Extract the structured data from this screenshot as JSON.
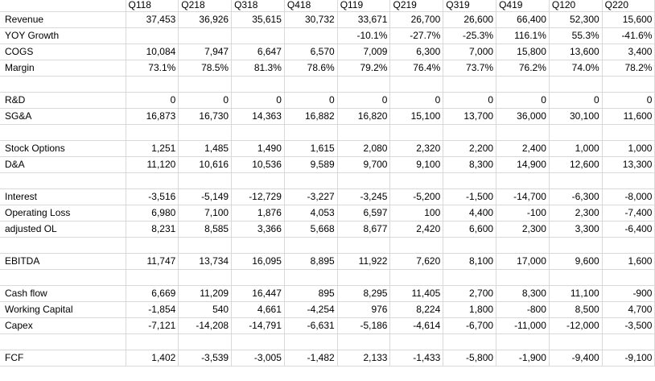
{
  "columns": [
    "",
    "Q118",
    "Q218",
    "Q318",
    "Q418",
    "Q119",
    "Q219",
    "Q319",
    "Q419",
    "Q120",
    "Q220"
  ],
  "rows": [
    {
      "label": "Revenue",
      "values": [
        "37,453",
        "36,926",
        "35,615",
        "30,732",
        "33,671",
        "26,700",
        "26,600",
        "66,400",
        "52,300",
        "15,600"
      ]
    },
    {
      "label": "YOY Growth",
      "values": [
        "",
        "",
        "",
        "",
        "-10.1%",
        "-27.7%",
        "-25.3%",
        "116.1%",
        "55.3%",
        "-41.6%"
      ]
    },
    {
      "label": "COGS",
      "values": [
        "10,084",
        "7,947",
        "6,647",
        "6,570",
        "7,009",
        "6,300",
        "7,000",
        "15,800",
        "13,600",
        "3,400"
      ]
    },
    {
      "label": "Margin",
      "values": [
        "73.1%",
        "78.5%",
        "81.3%",
        "78.6%",
        "79.2%",
        "76.4%",
        "73.7%",
        "76.2%",
        "74.0%",
        "78.2%"
      ]
    },
    {
      "label": "",
      "values": [
        "",
        "",
        "",
        "",
        "",
        "",
        "",
        "",
        "",
        ""
      ]
    },
    {
      "label": "R&D",
      "values": [
        "0",
        "0",
        "0",
        "0",
        "0",
        "0",
        "0",
        "0",
        "0",
        "0"
      ]
    },
    {
      "label": "SG&A",
      "values": [
        "16,873",
        "16,730",
        "14,363",
        "16,882",
        "16,820",
        "15,100",
        "13,700",
        "36,000",
        "30,100",
        "11,600"
      ]
    },
    {
      "label": "",
      "values": [
        "",
        "",
        "",
        "",
        "",
        "",
        "",
        "",
        "",
        ""
      ]
    },
    {
      "label": "Stock Options",
      "values": [
        "1,251",
        "1,485",
        "1,490",
        "1,615",
        "2,080",
        "2,320",
        "2,200",
        "2,400",
        "1,000",
        "1,000"
      ]
    },
    {
      "label": "D&A",
      "values": [
        "11,120",
        "10,616",
        "10,536",
        "9,589",
        "9,700",
        "9,100",
        "8,300",
        "14,900",
        "12,600",
        "13,300"
      ]
    },
    {
      "label": "",
      "values": [
        "",
        "",
        "",
        "",
        "",
        "",
        "",
        "",
        "",
        ""
      ]
    },
    {
      "label": "Interest",
      "values": [
        "-3,516",
        "-5,149",
        "-12,729",
        "-3,227",
        "-3,245",
        "-5,200",
        "-1,500",
        "-14,700",
        "-6,300",
        "-8,000"
      ]
    },
    {
      "label": "Operating Loss",
      "values": [
        "6,980",
        "7,100",
        "1,876",
        "4,053",
        "6,597",
        "100",
        "4,400",
        "-100",
        "2,300",
        "-7,400"
      ]
    },
    {
      "label": "adjusted OL",
      "values": [
        "8,231",
        "8,585",
        "3,366",
        "5,668",
        "8,677",
        "2,420",
        "6,600",
        "2,300",
        "3,300",
        "-6,400"
      ]
    },
    {
      "label": "",
      "values": [
        "",
        "",
        "",
        "",
        "",
        "",
        "",
        "",
        "",
        ""
      ]
    },
    {
      "label": "EBITDA",
      "values": [
        "11,747",
        "13,734",
        "16,095",
        "8,895",
        "11,922",
        "7,620",
        "8,100",
        "17,000",
        "9,600",
        "1,600"
      ]
    },
    {
      "label": "",
      "values": [
        "",
        "",
        "",
        "",
        "",
        "",
        "",
        "",
        "",
        ""
      ]
    },
    {
      "label": "Cash flow",
      "values": [
        "6,669",
        "11,209",
        "16,447",
        "895",
        "8,295",
        "11,405",
        "2,700",
        "8,300",
        "11,100",
        "-900"
      ]
    },
    {
      "label": "Working Capital",
      "values": [
        "-1,854",
        "540",
        "4,661",
        "-4,254",
        "976",
        "8,224",
        "1,800",
        "-800",
        "8,500",
        "4,700"
      ]
    },
    {
      "label": "Capex",
      "values": [
        "-7,121",
        "-14,208",
        "-14,791",
        "-6,631",
        "-5,186",
        "-4,614",
        "-6,700",
        "-11,000",
        "-12,000",
        "-3,500"
      ]
    },
    {
      "label": "",
      "values": [
        "",
        "",
        "",
        "",
        "",
        "",
        "",
        "",
        "",
        ""
      ]
    },
    {
      "label": "FCF",
      "values": [
        "1,402",
        "-3,539",
        "-3,005",
        "-1,482",
        "2,133",
        "-1,433",
        "-5,800",
        "-1,900",
        "-9,400",
        "-9,100"
      ]
    }
  ]
}
